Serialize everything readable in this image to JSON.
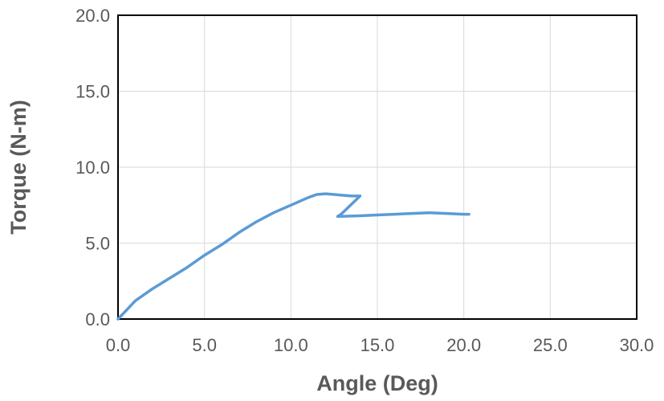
{
  "chart_data": {
    "type": "line",
    "title": "",
    "xlabel": "Angle (Deg)",
    "ylabel": "Torque (N-m)",
    "xlim": [
      0,
      30
    ],
    "ylim": [
      0,
      20
    ],
    "x_ticks": [
      "0.0",
      "5.0",
      "10.0",
      "15.0",
      "20.0",
      "25.0",
      "30.0"
    ],
    "y_ticks": [
      "0.0",
      "5.0",
      "10.0",
      "15.0",
      "20.0"
    ],
    "grid": true,
    "legend": "none",
    "series": [
      {
        "color": "#5b9bd5",
        "x": [
          0.0,
          0.5,
          1.0,
          2.0,
          3.0,
          4.0,
          5.0,
          6.0,
          7.0,
          8.0,
          9.0,
          10.0,
          11.0,
          11.5,
          12.0,
          12.5,
          13.0,
          13.5,
          14.0,
          12.9,
          12.7,
          14.0,
          15.0,
          16.0,
          17.0,
          18.0,
          19.0,
          20.0,
          20.3
        ],
        "y": [
          0.0,
          0.6,
          1.2,
          2.0,
          2.7,
          3.4,
          4.2,
          4.9,
          5.7,
          6.4,
          7.0,
          7.5,
          8.0,
          8.2,
          8.25,
          8.2,
          8.15,
          8.1,
          8.1,
          6.9,
          6.75,
          6.8,
          6.85,
          6.9,
          6.95,
          7.0,
          6.95,
          6.9,
          6.9
        ]
      }
    ]
  }
}
